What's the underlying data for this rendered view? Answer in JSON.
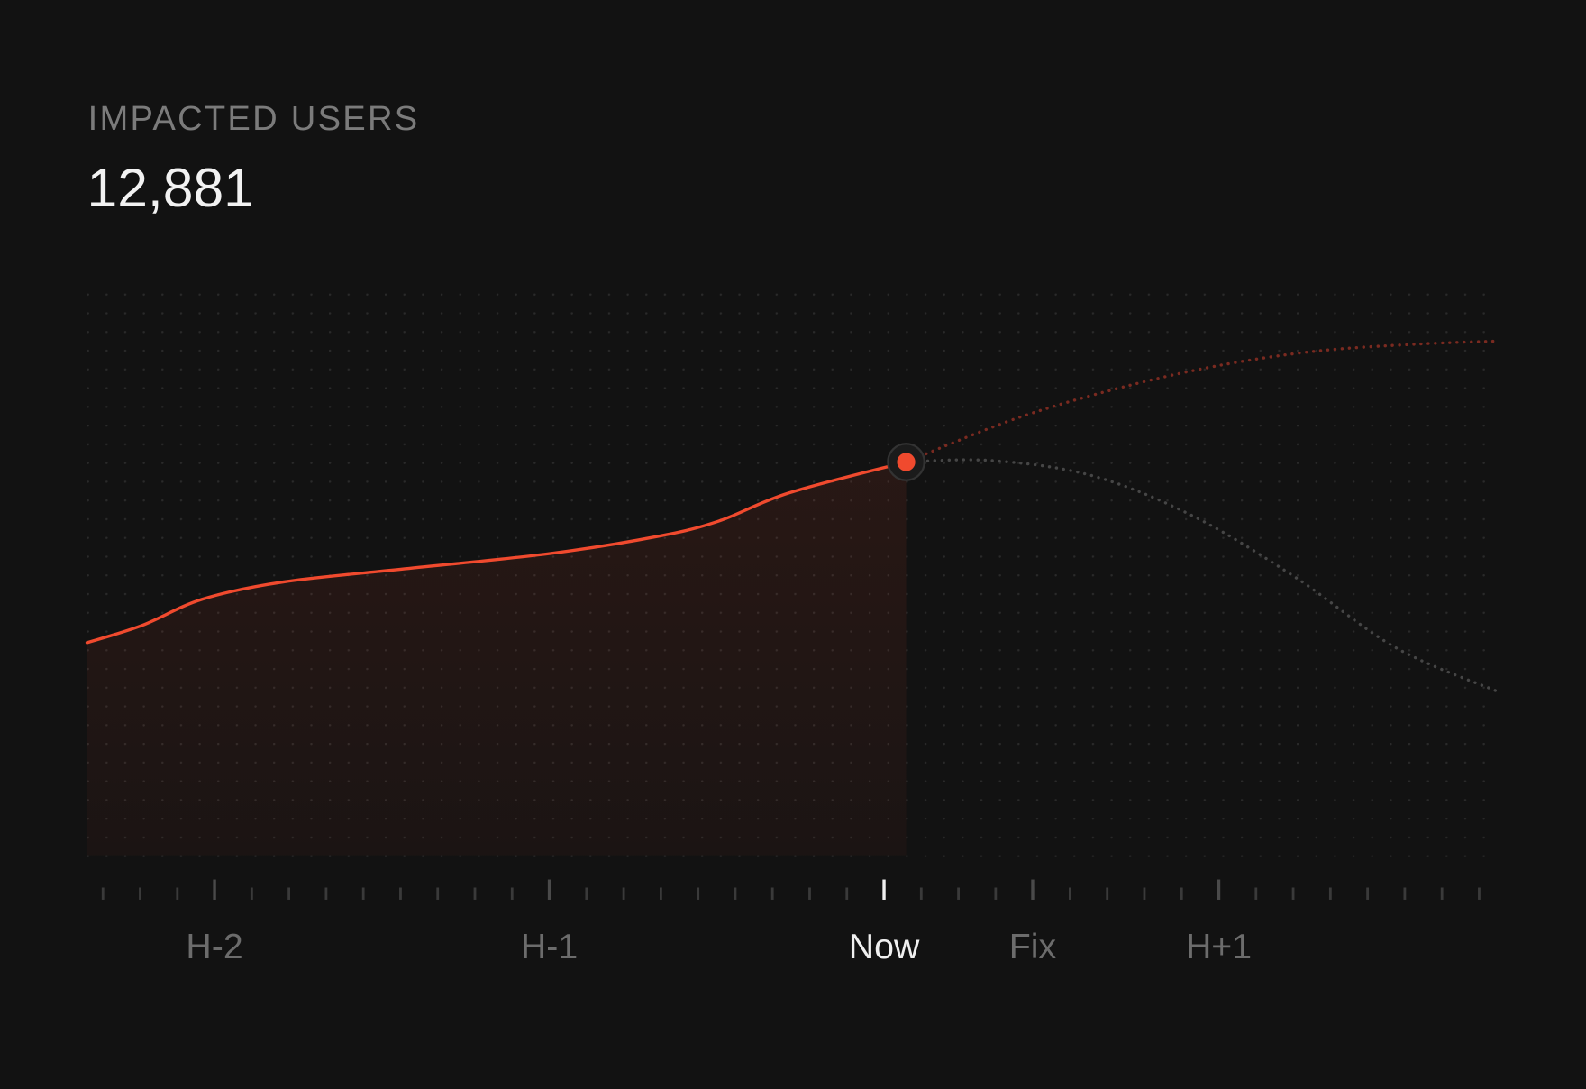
{
  "chart_data": {
    "type": "line",
    "title": "IMPACTED USERS",
    "subtitle": "12,881",
    "xlim": [
      -2.381,
      1.831
    ],
    "ylim": [
      0,
      18400
    ],
    "xticks": [
      {
        "value": -2,
        "label": "H-2"
      },
      {
        "value": -1,
        "label": "H-1"
      },
      {
        "value": 0,
        "label": "Now"
      },
      {
        "value": 0.444,
        "label": "Fix"
      },
      {
        "value": 1,
        "label": "H+1"
      }
    ],
    "grid": "dots",
    "series": [
      {
        "color": "#f04a2e",
        "style": "solid",
        "fill": true,
        "marker_last": true,
        "x": [
          -2.381,
          -2.217,
          -2.036,
          -1.795,
          -1.432,
          -1,
          -0.677,
          -0.495,
          -0.284,
          0.066
        ],
        "values": [
          6962,
          7525,
          8387,
          8951,
          9381,
          9879,
          10442,
          10940,
          11868,
          12881
        ]
      },
      {
        "color": "#7a2a20",
        "style": "dotted",
        "x": [
          0.066,
          0.381,
          0.683,
          0.985,
          1.287,
          1.589,
          1.831
        ],
        "values": [
          12881,
          14255,
          15249,
          16011,
          16509,
          16741,
          16840
        ]
      },
      {
        "color": "#464646",
        "style": "dotted",
        "x": [
          0.066,
          0.32,
          0.622,
          0.924,
          1.227,
          1.529,
          1.831
        ],
        "values": [
          12881,
          12929,
          12431,
          11105,
          9116,
          6796,
          5370
        ]
      }
    ]
  }
}
